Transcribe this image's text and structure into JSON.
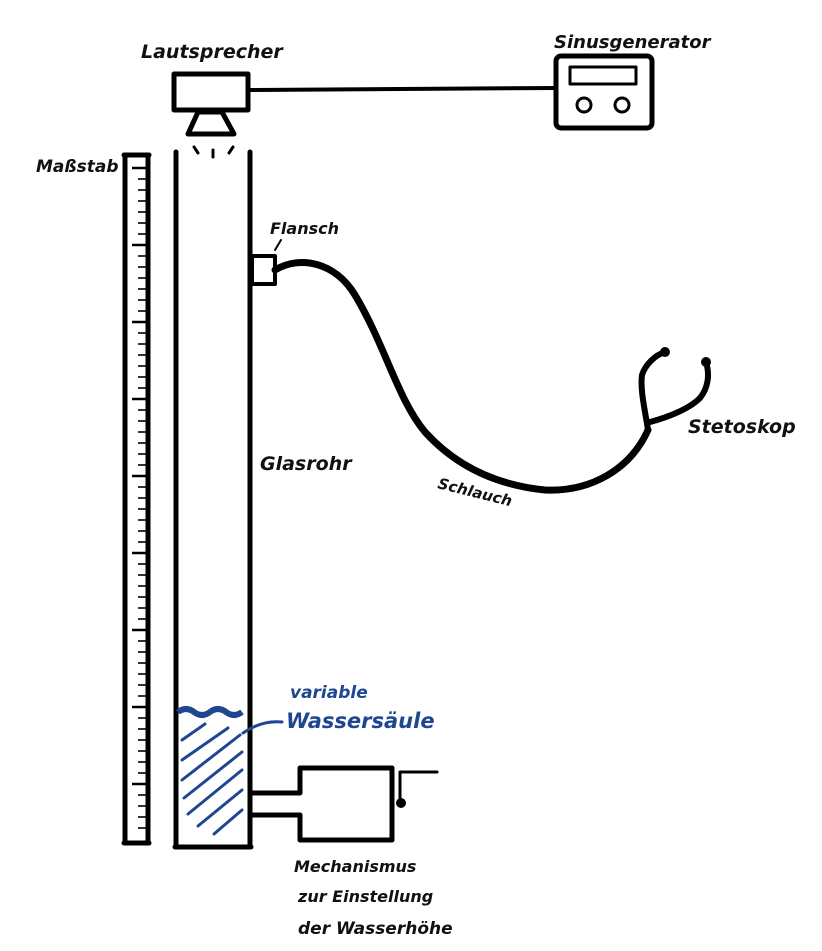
{
  "labels": {
    "speaker": "Lautsprecher",
    "generator": "Sinusgenerator",
    "scale": "Maßstab",
    "flange": "Flansch",
    "tube": "Glasrohr",
    "hose": "Schlauch",
    "stethoscope": "Stetoskop",
    "water_line1": "variable",
    "water_line2": "Wassersäule",
    "mech_line1": "Mechanismus",
    "mech_line2": "zur   Einstellung",
    "mech_line3": "der Wasserhöhe"
  },
  "colors": {
    "ink": "#000000",
    "water": "#1f4690"
  }
}
